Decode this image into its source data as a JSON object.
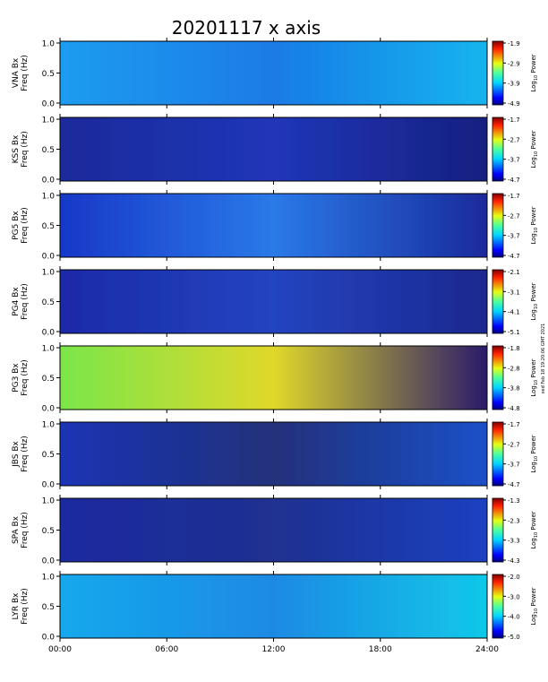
{
  "title": "20201117  x axis",
  "side_note": "xed Feb 18 19:20:06 GMT 2021",
  "colorbar_label": "Log",
  "colorbar_label_sub": "10",
  "colorbar_label_tail": " Power",
  "freq_label": "Freq (Hz)",
  "x_tick_labels": [
    "00:00",
    "06:00",
    "12:00",
    "18:00",
    "24:00"
  ],
  "chart_data": [
    {
      "type": "heatmap",
      "station": "VNA Bx",
      "ylabel": "VNA Bx\nFreq (Hz)",
      "xlim": [
        0,
        24
      ],
      "ylim": [
        0,
        1
      ],
      "yticks": [
        "0.0",
        "0.5",
        "1.0"
      ],
      "clim": [
        -4.9,
        -1.9
      ],
      "cbar_ticks": [
        "-1.9",
        "-2.9",
        "-3.9",
        "-4.9"
      ]
    },
    {
      "type": "heatmap",
      "station": "KSS Bx",
      "ylabel": "KSS Bx\nFreq (Hz)",
      "xlim": [
        0,
        24
      ],
      "ylim": [
        0,
        1
      ],
      "yticks": [
        "0.0",
        "0.5",
        "1.0"
      ],
      "clim": [
        -4.7,
        -1.7
      ],
      "cbar_ticks": [
        "-1.7",
        "-2.7",
        "-3.7",
        "-4.7"
      ]
    },
    {
      "type": "heatmap",
      "station": "PG5 Bx",
      "ylabel": "PG5 Bx\nFreq (Hz)",
      "xlim": [
        0,
        24
      ],
      "ylim": [
        0,
        1
      ],
      "yticks": [
        "0.0",
        "0.5",
        "1.0"
      ],
      "clim": [
        -4.7,
        -1.7
      ],
      "cbar_ticks": [
        "-1.7",
        "-2.7",
        "-3.7",
        "-4.7"
      ]
    },
    {
      "type": "heatmap",
      "station": "PG4 Bx",
      "ylabel": "PG4 Bx\nFreq (Hz)",
      "xlim": [
        0,
        24
      ],
      "ylim": [
        0,
        1
      ],
      "yticks": [
        "0.0",
        "0.5",
        "1.0"
      ],
      "clim": [
        -5.1,
        -2.1
      ],
      "cbar_ticks": [
        "-2.1",
        "-3.1",
        "-4.1",
        "-5.1"
      ]
    },
    {
      "type": "heatmap",
      "station": "PG3 Bx",
      "ylabel": "PG3 Bx\nFreq (Hz)",
      "xlim": [
        0,
        24
      ],
      "ylim": [
        0,
        1
      ],
      "yticks": [
        "0.0",
        "0.5",
        "1.0"
      ],
      "clim": [
        -4.8,
        -1.8
      ],
      "cbar_ticks": [
        "-1.8",
        "-2.8",
        "-3.8",
        "-4.8"
      ]
    },
    {
      "type": "heatmap",
      "station": "JBS Bx",
      "ylabel": "JBS Bx\nFreq (Hz)",
      "xlim": [
        0,
        24
      ],
      "ylim": [
        0,
        1
      ],
      "yticks": [
        "0.0",
        "0.5",
        "1.0"
      ],
      "clim": [
        -4.7,
        -1.7
      ],
      "cbar_ticks": [
        "-1.7",
        "-2.7",
        "-3.7",
        "-4.7"
      ]
    },
    {
      "type": "heatmap",
      "station": "SPA Bx",
      "ylabel": "SPA Bx\nFreq (Hz)",
      "xlim": [
        0,
        24
      ],
      "ylim": [
        0,
        1
      ],
      "yticks": [
        "0.0",
        "0.5",
        "1.0"
      ],
      "clim": [
        -4.3,
        -1.3
      ],
      "cbar_ticks": [
        "-1.3",
        "-2.3",
        "-3.3",
        "-4.3"
      ]
    },
    {
      "type": "heatmap",
      "station": "LYR Bx",
      "ylabel": "LYR Bx\nFreq (Hz)",
      "xlim": [
        0,
        24
      ],
      "ylim": [
        0,
        1
      ],
      "yticks": [
        "0.0",
        "0.5",
        "1.0"
      ],
      "clim": [
        -5.0,
        -2.0
      ],
      "cbar_ticks": [
        "-2.0",
        "-3.0",
        "-4.0",
        "-5.0"
      ]
    }
  ]
}
